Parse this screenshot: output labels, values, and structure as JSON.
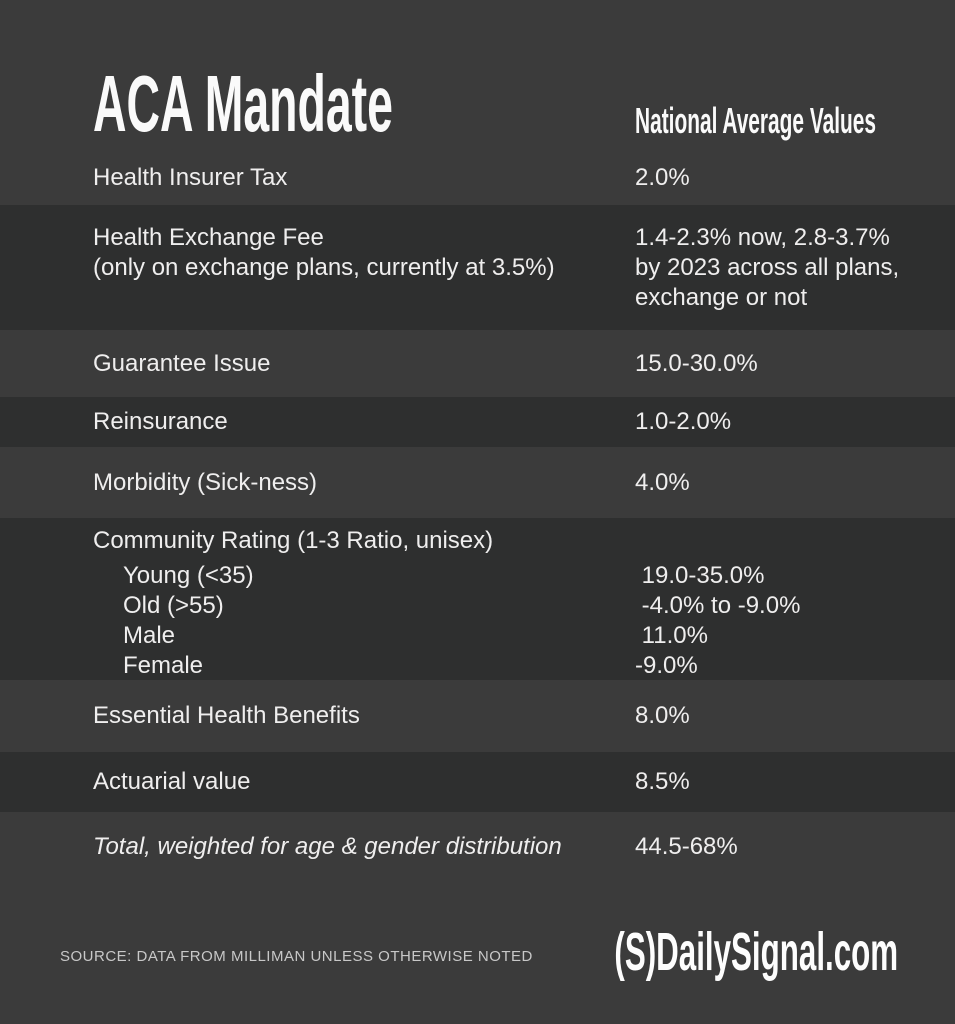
{
  "colors": {
    "background_light": "#3b3b3b",
    "background_dark": "#2e2f2f",
    "text": "#efeeee",
    "muted_text": "#c8c8c8"
  },
  "header": {
    "title": "ACA Mandate",
    "column_header": "National Average Values"
  },
  "rows": [
    {
      "label": "Health Insurer Tax",
      "value": "2.0%"
    },
    {
      "label": "Health Exchange Fee",
      "label_note": "(only on exchange plans, currently at 3.5%)",
      "value_lines": [
        "1.4-2.3% now, 2.8-3.7%",
        "by 2023 across all plans,",
        "exchange or not"
      ]
    },
    {
      "label": "Guarantee Issue",
      "value": "15.0-30.0%"
    },
    {
      "label": "Reinsurance",
      "value": "1.0-2.0%"
    },
    {
      "label": "Morbidity (Sick-ness)",
      "value": "4.0%"
    },
    {
      "label": "Community Rating (1-3 Ratio, unisex)",
      "items": [
        {
          "label": "Young (<35)",
          "value": " 19.0-35.0%"
        },
        {
          "label": "Old (>55)",
          "value": " -4.0% to -9.0%"
        },
        {
          "label": "Male",
          "value": " 11.0%"
        },
        {
          "label": "Female",
          "value": "-9.0%"
        }
      ]
    },
    {
      "label": "Essential Health Benefits",
      "value": "8.0%"
    },
    {
      "label": "Actuarial value",
      "value": "8.5%"
    },
    {
      "label": "Total, weighted for age & gender distribution",
      "value": "44.5-68%"
    }
  ],
  "footer": {
    "source": "SOURCE: DATA FROM MILLIMAN UNLESS OTHERWISE NOTED",
    "logo": "(S)DailySignal.com"
  },
  "chart_data": {
    "type": "table",
    "title": "ACA Mandate",
    "columns": [
      "ACA Mandate",
      "National Average Values"
    ],
    "rows": [
      [
        "Health Insurer Tax",
        "2.0%"
      ],
      [
        "Health Exchange Fee (only on exchange plans, currently at 3.5%)",
        "1.4-2.3% now, 2.8-3.7% by 2023 across all plans, exchange or not"
      ],
      [
        "Guarantee Issue",
        "15.0-30.0%"
      ],
      [
        "Reinsurance",
        "1.0-2.0%"
      ],
      [
        "Morbidity (Sick-ness)",
        "4.0%"
      ],
      [
        "Community Rating (1-3 Ratio, unisex) - Young (<35)",
        "19.0-35.0%"
      ],
      [
        "Community Rating (1-3 Ratio, unisex) - Old (>55)",
        "-4.0% to -9.0%"
      ],
      [
        "Community Rating (1-3 Ratio, unisex) - Male",
        "11.0%"
      ],
      [
        "Community Rating (1-3 Ratio, unisex) - Female",
        "-9.0%"
      ],
      [
        "Essential Health Benefits",
        "8.0%"
      ],
      [
        "Actuarial value",
        "8.5%"
      ],
      [
        "Total, weighted for age & gender distribution",
        "44.5-68%"
      ]
    ],
    "source": "SOURCE: DATA FROM MILLIMAN UNLESS OTHERWISE NOTED",
    "layout": {
      "row_shading": "alternating dark bands on rows 2,4,6,8",
      "value_column_x": 635
    }
  }
}
